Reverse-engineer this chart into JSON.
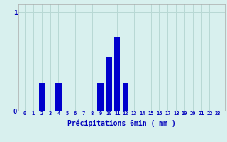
{
  "hours": [
    0,
    1,
    2,
    3,
    4,
    5,
    6,
    7,
    8,
    9,
    10,
    11,
    12,
    13,
    14,
    15,
    16,
    17,
    18,
    19,
    20,
    21,
    22,
    23
  ],
  "values": [
    0,
    0,
    0.28,
    0,
    0.28,
    0,
    0,
    0,
    0,
    0.28,
    0.55,
    0.75,
    0.28,
    0,
    0,
    0,
    0,
    0,
    0,
    0,
    0,
    0,
    0,
    0
  ],
  "bar_color": "#0000cc",
  "bg_color": "#d8f0ee",
  "grid_color": "#b8d8d4",
  "axis_color": "#aaaaaa",
  "text_color": "#0000bb",
  "xlabel": "Précipitations 6min ( mm )",
  "ylim": [
    0,
    1.08
  ],
  "yticks": [
    0,
    1
  ],
  "bar_width": 0.7
}
